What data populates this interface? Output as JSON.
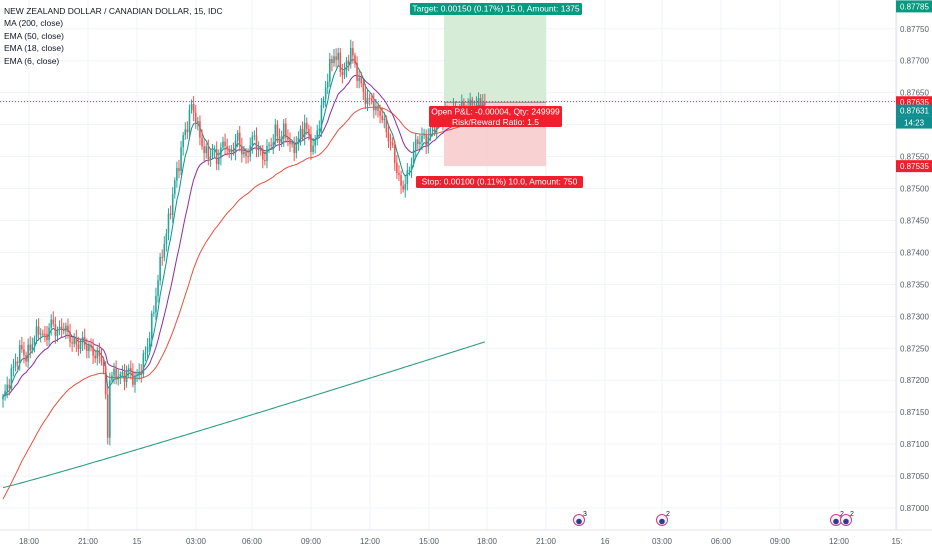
{
  "chart_data": {
    "type": "candlestick",
    "title": "NEW ZEALAND DOLLAR / CANADIAN DOLLAR, 15, IDC",
    "indicators": [
      "MA (200, close)",
      "EMA (50, close)",
      "EMA (18, close)",
      "EMA (6, close)"
    ],
    "y_ticks": [
      "0.87000",
      "0.87050",
      "0.87100",
      "0.87150",
      "0.87200",
      "0.87250",
      "0.87300",
      "0.87350",
      "0.87400",
      "0.87450",
      "0.87500",
      "0.87550",
      "0.87600",
      "0.87650",
      "0.87700",
      "0.87750"
    ],
    "x_ticks": [
      "18:00",
      "21:00",
      "15",
      "03:00",
      "06:00",
      "09:00",
      "12:00",
      "15:00",
      "18:00",
      "21:00",
      "16",
      "03:00",
      "06:00",
      "09:00",
      "12:00",
      "15:"
    ],
    "ylim": [
      0.86975,
      0.87795
    ],
    "price_labels": {
      "target": "0.87785",
      "last": "0.87635",
      "current": "0.87631",
      "countdown": "14:23",
      "stop": "0.87535"
    },
    "position": {
      "target_label": "Target: 0.00150 (0.17%) 15.0, Amount: 1375",
      "pnl_label": "Open P&L: -0.00004, Qty: 249999",
      "ratio_label": "Risk/Reward Ratio: 1.5",
      "stop_label": "Stop: 0.00100 (0.11%) 10.0, Amount: 750",
      "entry": 0.87635,
      "target": 0.87785,
      "stop": 0.87535
    },
    "events": [
      "3",
      "2",
      "2",
      "2"
    ],
    "colors": {
      "up": "#26a69a",
      "down": "#ef5350",
      "ma200": "#2e9e7c",
      "ema50": "#e8503f",
      "ema18": "#8e2ca0",
      "ema6": "#0f8f90",
      "target_zone": "#cfe9cf",
      "stop_zone": "#f7c9cb",
      "target_tag": "#089981",
      "stop_tag": "#f01f2e"
    },
    "close_path": [
      [
        0,
        0.8717
      ],
      [
        3,
        0.872
      ],
      [
        6,
        0.8723
      ],
      [
        9,
        0.8725
      ],
      [
        11,
        0.87235
      ],
      [
        14,
        0.8726
      ],
      [
        17,
        0.8728
      ],
      [
        20,
        0.87265
      ],
      [
        23,
        0.8729
      ],
      [
        26,
        0.87275
      ],
      [
        29,
        0.87285
      ],
      [
        32,
        0.87265
      ],
      [
        35,
        0.87255
      ],
      [
        38,
        0.8726
      ],
      [
        41,
        0.8725
      ],
      [
        44,
        0.8724
      ],
      [
        47,
        0.87235
      ],
      [
        48,
        0.87225
      ],
      [
        50,
        0.8711
      ],
      [
        51,
        0.87205
      ],
      [
        54,
        0.8721
      ],
      [
        57,
        0.87205
      ],
      [
        60,
        0.87215
      ],
      [
        63,
        0.872
      ],
      [
        66,
        0.8722
      ],
      [
        69,
        0.87255
      ],
      [
        72,
        0.8731
      ],
      [
        74,
        0.8736
      ],
      [
        76,
        0.874
      ],
      [
        78,
        0.8743
      ],
      [
        80,
        0.8747
      ],
      [
        82,
        0.8751
      ],
      [
        84,
        0.8754
      ],
      [
        86,
        0.8758
      ],
      [
        88,
        0.876
      ],
      [
        90,
        0.8763
      ],
      [
        92,
        0.8761
      ],
      [
        94,
        0.8758
      ],
      [
        96,
        0.8756
      ],
      [
        98,
        0.8755
      ],
      [
        100,
        0.8756
      ],
      [
        102,
        0.87545
      ],
      [
        104,
        0.8756
      ],
      [
        106,
        0.87575
      ],
      [
        108,
        0.8755
      ],
      [
        110,
        0.87565
      ],
      [
        112,
        0.8758
      ],
      [
        114,
        0.8756
      ],
      [
        116,
        0.87545
      ],
      [
        118,
        0.8757
      ],
      [
        120,
        0.8758
      ],
      [
        122,
        0.8756
      ],
      [
        124,
        0.87545
      ],
      [
        126,
        0.8756
      ],
      [
        128,
        0.8757
      ],
      [
        130,
        0.8759
      ],
      [
        132,
        0.87575
      ],
      [
        134,
        0.8759
      ],
      [
        136,
        0.8758
      ],
      [
        138,
        0.8756
      ],
      [
        140,
        0.8757
      ],
      [
        142,
        0.87585
      ],
      [
        144,
        0.876
      ],
      [
        146,
        0.8758
      ],
      [
        148,
        0.8756
      ],
      [
        150,
        0.8759
      ],
      [
        152,
        0.8762
      ],
      [
        154,
        0.8766
      ],
      [
        156,
        0.8769
      ],
      [
        158,
        0.8771
      ],
      [
        160,
        0.877
      ],
      [
        162,
        0.8768
      ],
      [
        164,
        0.8769
      ],
      [
        166,
        0.8772
      ],
      [
        168,
        0.8769
      ],
      [
        170,
        0.8767
      ],
      [
        172,
        0.8765
      ],
      [
        174,
        0.87635
      ],
      [
        176,
        0.8764
      ],
      [
        178,
        0.8762
      ],
      [
        180,
        0.8762
      ],
      [
        182,
        0.876
      ],
      [
        184,
        0.8758
      ],
      [
        186,
        0.8756
      ],
      [
        188,
        0.8753
      ],
      [
        190,
        0.875
      ],
      [
        192,
        0.8751
      ],
      [
        194,
        0.8753
      ],
      [
        196,
        0.8756
      ],
      [
        198,
        0.87575
      ],
      [
        200,
        0.8758
      ],
      [
        202,
        0.87575
      ],
      [
        204,
        0.8759
      ],
      [
        206,
        0.876
      ],
      [
        208,
        0.87605
      ],
      [
        210,
        0.87615
      ],
      [
        212,
        0.8761
      ],
      [
        214,
        0.8762
      ],
      [
        216,
        0.87615
      ],
      [
        218,
        0.87625
      ],
      [
        220,
        0.8762
      ],
      [
        222,
        0.8763
      ],
      [
        224,
        0.87625
      ],
      [
        226,
        0.8763
      ],
      [
        228,
        0.87635
      ],
      [
        230,
        0.87631
      ]
    ]
  }
}
